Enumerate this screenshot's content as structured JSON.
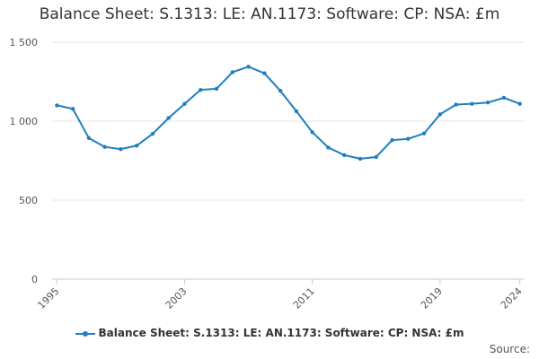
{
  "chart_data": {
    "type": "line",
    "title": "Balance Sheet: S.1313: LE: AN.1173: Software: CP: NSA: £m",
    "xlabel": "",
    "ylabel": "",
    "x": [
      1995,
      1996,
      1997,
      1998,
      1999,
      2000,
      2001,
      2002,
      2003,
      2004,
      2005,
      2006,
      2007,
      2008,
      2009,
      2010,
      2011,
      2012,
      2013,
      2014,
      2015,
      2016,
      2017,
      2018,
      2019,
      2020,
      2021,
      2022,
      2023,
      2024
    ],
    "series": [
      {
        "name": "Balance Sheet: S.1313: LE: AN.1173: Software: CP: NSA: £m",
        "values": [
          1100,
          1078,
          893,
          837,
          823,
          845,
          920,
          1020,
          1110,
          1198,
          1205,
          1310,
          1345,
          1303,
          1192,
          1063,
          930,
          833,
          785,
          762,
          773,
          880,
          888,
          922,
          1043,
          1105,
          1110,
          1118,
          1148,
          1110
        ]
      }
    ],
    "ylim": [
      0,
      1500
    ],
    "y_ticks": [
      0,
      500,
      1000,
      1500
    ],
    "y_tick_labels": [
      "0",
      "500",
      "1 000",
      "1 500"
    ],
    "x_ticks": [
      1995,
      2003,
      2011,
      2019,
      2024
    ],
    "x_tick_labels": [
      "1995",
      "2003",
      "2011",
      "2019",
      "2024"
    ],
    "grid": true,
    "legend_position": "bottom-center",
    "line_color": "#1f7fbf",
    "grid_color": "#e6e6e6",
    "credits": "Source:"
  }
}
